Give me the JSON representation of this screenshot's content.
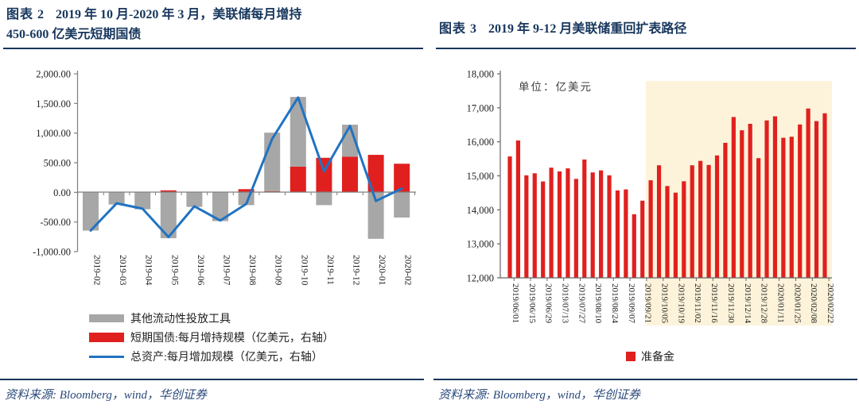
{
  "colors": {
    "navy": "#17365d",
    "gray_bar": "#a7a7a7",
    "red_bar": "#e0201e",
    "blue_line": "#2173c2",
    "highlight": "#fdf3da",
    "axis": "#7f7f7f",
    "tick_text": "#222222"
  },
  "left_panel": {
    "title_label": "图表 2",
    "title_line1": "2019 年 10 月-2020 年 3 月，美联储每月增持",
    "title_line2": "450-600 亿美元短期国债",
    "source": "资料来源: Bloomberg，wind，华创证券"
  },
  "right_panel": {
    "title_label": "图表 3",
    "title": "2019 年 9-12 月美联储重回扩表路径",
    "source": "资料来源: Bloomberg，wind，华创证券"
  },
  "chart_data": [
    {
      "type": "bar",
      "subtype": "stacked-bar-with-line",
      "categories": [
        "2019-02",
        "2019-03",
        "2019-04",
        "2019-05",
        "2019-06",
        "2019-07",
        "2019-08",
        "2019-09",
        "2019-10",
        "2019-11",
        "2019-12",
        "2020-01",
        "2020-02"
      ],
      "series": [
        {
          "name": "其他流动性投放工具",
          "kind": "bar",
          "color": "#a7a7a7",
          "values": [
            -650,
            -210,
            -290,
            -780,
            -250,
            -490,
            -220,
            990,
            1180,
            -220,
            540,
            -790,
            -430
          ]
        },
        {
          "name": "短期国债:每月增持规模（亿美元，右轴）",
          "kind": "bar",
          "color": "#e0201e",
          "values": [
            0,
            0,
            0,
            30,
            0,
            0,
            50,
            15,
            430,
            580,
            600,
            630,
            480
          ]
        },
        {
          "name": "总资产:每月增加规模（亿美元，右轴）",
          "kind": "line",
          "color": "#2173c2",
          "values": [
            -650,
            -190,
            -280,
            -760,
            -240,
            -480,
            -200,
            900,
            1600,
            350,
            1120,
            -150,
            60
          ]
        }
      ],
      "ylim": [
        -1000,
        2000
      ],
      "yticks": [
        "2,000.00",
        "1,500.00",
        "1,000.00",
        "500.00",
        "0.00",
        "-500.00",
        "-1,000.00"
      ],
      "grid": false,
      "legend_position": "bottom-left"
    },
    {
      "type": "bar",
      "unit_label": "单位：亿美元",
      "legend": "准备金",
      "bar_color": "#e0201e",
      "x_labels": [
        "2019/06/01",
        "2019/06/15",
        "2019/06/29",
        "2019/07/13",
        "2019/07/27",
        "2019/08/10",
        "2019/08/24",
        "2019/09/07",
        "2019/09/21",
        "2019/10/05",
        "2019/10/19",
        "2019/11/02",
        "2019/11/16",
        "2019/11/30",
        "2019/12/14",
        "2019/12/28",
        "2020/01/11",
        "2020/01/25",
        "2020/02/08",
        "2020/02/22"
      ],
      "label_every": 2,
      "values": [
        15570,
        16040,
        15015,
        15075,
        14835,
        15240,
        15130,
        15220,
        14910,
        15480,
        15100,
        15160,
        15015,
        14570,
        14600,
        13870,
        14270,
        14870,
        15310,
        14700,
        14505,
        14840,
        15310,
        15440,
        15320,
        15600,
        15970,
        16730,
        16340,
        16530,
        15520,
        16630,
        16750,
        16120,
        16150,
        16510,
        16980,
        16610,
        16840
      ],
      "ylim": [
        12000,
        18000
      ],
      "yticks": [
        "18,000",
        "17,000",
        "16,000",
        "15,000",
        "14,000",
        "13,000",
        "12,000"
      ],
      "grid": false,
      "highlight": {
        "from_index": 17,
        "color": "#fdf3da"
      },
      "legend_position": "bottom-center"
    }
  ]
}
